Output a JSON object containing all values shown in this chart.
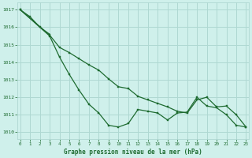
{
  "title": "Graphe pression niveau de la mer (hPa)",
  "background_color": "#cff0eb",
  "grid_color": "#afd8d2",
  "line_color": "#1e6b30",
  "series1_x": [
    0,
    1,
    2,
    3,
    4,
    5,
    6,
    7,
    8,
    9,
    10,
    11,
    12,
    13,
    14,
    15,
    16,
    17,
    18,
    19,
    20,
    21,
    22,
    23
  ],
  "series1_y": [
    1017.0,
    1016.6,
    1016.0,
    1015.5,
    1014.3,
    1013.3,
    1012.4,
    1011.6,
    1011.1,
    1010.4,
    1010.3,
    1010.5,
    1011.3,
    1011.2,
    1011.1,
    1010.7,
    1011.1,
    1011.15,
    1012.0,
    1011.5,
    1011.4,
    1011.0,
    1010.4,
    1010.3
  ],
  "series2_x": [
    0,
    2,
    3
  ],
  "series2_y": [
    1017.0,
    1016.0,
    1015.6
  ],
  "series3_x": [
    0,
    3,
    4,
    5,
    6,
    7,
    8,
    9,
    10,
    11,
    12,
    13,
    14,
    15,
    16,
    17,
    18,
    19,
    20,
    21,
    22,
    23
  ],
  "series3_y": [
    1017.0,
    1015.55,
    1014.85,
    1014.55,
    1014.2,
    1013.85,
    1013.55,
    1013.05,
    1012.6,
    1012.5,
    1012.05,
    1011.85,
    1011.65,
    1011.45,
    1011.2,
    1011.1,
    1011.85,
    1012.0,
    1011.45,
    1011.5,
    1011.0,
    1010.3
  ],
  "ylim": [
    1009.6,
    1017.4
  ],
  "yticks": [
    1010,
    1011,
    1012,
    1013,
    1014,
    1015,
    1016,
    1017
  ],
  "xlim": [
    -0.3,
    23.3
  ],
  "xticks": [
    0,
    1,
    2,
    3,
    4,
    5,
    6,
    7,
    8,
    9,
    10,
    11,
    12,
    13,
    14,
    15,
    16,
    17,
    18,
    19,
    20,
    21,
    22,
    23
  ]
}
